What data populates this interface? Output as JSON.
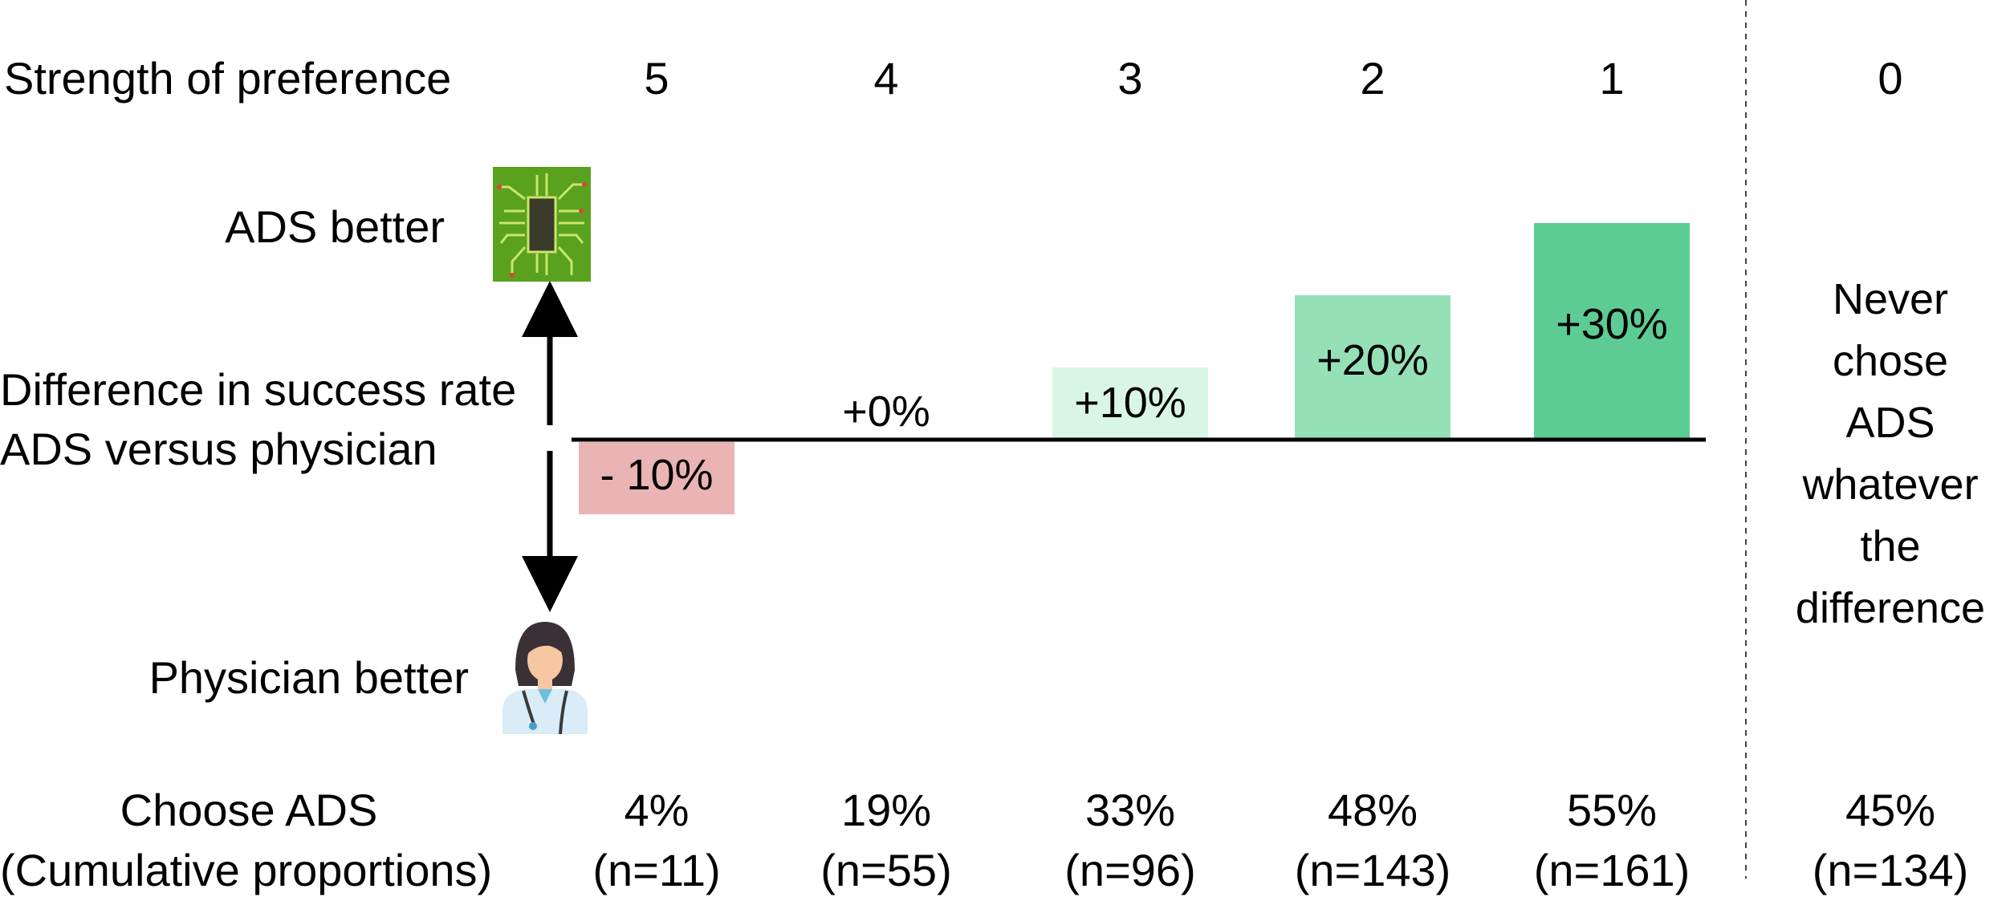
{
  "labels": {
    "strength_of_preference": "Strength of preference",
    "ads_better": "ADS better",
    "difference_line1": "Difference in success rate",
    "difference_line2": "ADS versus physician",
    "physician_better": "Physician better",
    "choose_ads_line1": "Choose ADS",
    "choose_ads_line2": "(Cumulative proportions)",
    "never_chose": [
      "Never",
      "chose",
      "ADS",
      "whatever",
      "the",
      "difference"
    ]
  },
  "icons": {
    "top": "chip-icon",
    "bottom": "physician-icon"
  },
  "chart_data": {
    "type": "bar",
    "categories": [
      "5",
      "4",
      "3",
      "2",
      "1",
      "0"
    ],
    "series": [
      {
        "values": [
          -10,
          0,
          10,
          20,
          30,
          null
        ],
        "data_labels": [
          "- 10%",
          "+0%",
          "+10%",
          "+20%",
          "+30%",
          ""
        ],
        "colors": [
          "#eab3b4",
          "#ffffff",
          "#d9f5e6",
          "#96e0b8",
          "#5ccc94",
          ""
        ]
      }
    ],
    "cumulative_percent": [
      "4%",
      "19%",
      "33%",
      "48%",
      "55%",
      "45%"
    ],
    "counts": [
      "(n=11)",
      "(n=55)",
      "(n=96)",
      "(n=143)",
      "(n=161)",
      "(n=134)"
    ],
    "ylim": [
      -10,
      30
    ],
    "legend": "none",
    "grid": false
  }
}
